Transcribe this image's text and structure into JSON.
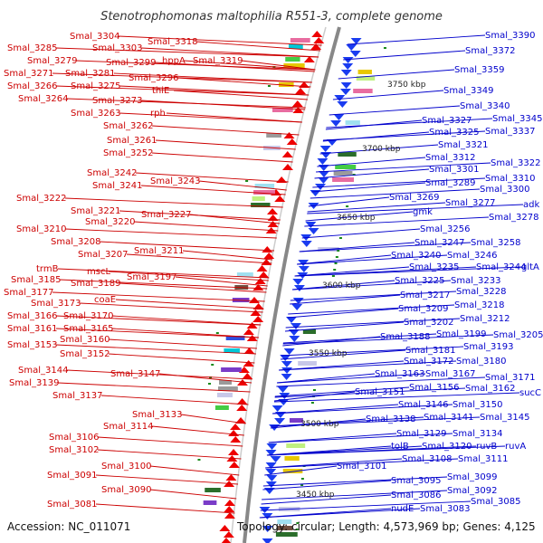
{
  "title": "Stenotrophomonas maltophilia R551-3, complete genome",
  "accession": "Accession: NC_011071",
  "topology": "Topology: circular; Length: 4,573,969 bp; Genes: 4,125",
  "colors": {
    "left": "#cc0000",
    "right": "#0000cc",
    "backbone": "#888888"
  },
  "ticks": [
    "3750 kbp",
    "3700 kbp",
    "3650 kbp",
    "3600 kbp",
    "3550 kbp",
    "3500 kbp",
    "3450 kbp"
  ],
  "left_labels": [
    "Smal_3304",
    "Smal_3318",
    "Smal_3285",
    "Smal_3303",
    "Smal_3279",
    "Smal_3299",
    "hppA",
    "Smal_3319",
    "Smal_3271",
    "Smal_3281",
    "Smal_3296",
    "Smal_3266",
    "Smal_3275",
    "thiE",
    "Smal_3264",
    "Smal_3273",
    "Smal_3263",
    "rph",
    "Smal_3262",
    "Smal_3261",
    "Smal_3252",
    "Smal_3242",
    "Smal_3241",
    "Smal_3243",
    "Smal_3222",
    "Smal_3221",
    "Smal_3227",
    "Smal_3220",
    "Smal_3210",
    "Smal_3208",
    "Smal_3211",
    "Smal_3207",
    "trmB",
    "mscL",
    "Smal_3197",
    "Smal_3185",
    "Smal_3189",
    "Smal_3177",
    "coaE",
    "Smal_3173",
    "Smal_3166",
    "Smal_3170",
    "Smal_3165",
    "Smal_3161",
    "Smal_3160",
    "Smal_3153",
    "Smal_3152",
    "Smal_3144",
    "Smal_3147",
    "Smal_3139",
    "Smal_3137",
    "Smal_3133",
    "Smal_3114",
    "Smal_3106",
    "Smal_3102",
    "Smal_3100",
    "Smal_3091",
    "Smal_3090",
    "Smal_3081"
  ],
  "right_labels": [
    "Smal_3390",
    "Smal_3372",
    "Smal_3359",
    "Smal_3349",
    "Smal_3340",
    "Smal_3345",
    "Smal_3327",
    "Smal_3337",
    "Smal_3325",
    "Smal_3321",
    "Smal_3312",
    "Smal_3322",
    "Smal_3301",
    "Smal_3310",
    "Smal_3289",
    "Smal_3300",
    "Smal_3277",
    "adk",
    "Smal_3269",
    "Smal_3278",
    "gmk",
    "Smal_3256",
    "Smal_3247",
    "Smal_3258",
    "Smal_3240",
    "Smal_3246",
    "Smal_3235",
    "Smal_3244",
    "gltA",
    "Smal_3225",
    "Smal_3233",
    "Smal_3217",
    "Smal_3228",
    "Smal_3209",
    "Smal_3218",
    "Smal_3212",
    "Smal_3202",
    "Smal_3188",
    "Smal_3199",
    "Smal_3205",
    "Smal_3193",
    "Smal_3181",
    "Smal_3172",
    "Smal_3180",
    "Smal_3163",
    "Smal_3167",
    "Smal_3171",
    "Smal_3151",
    "Smal_3156",
    "Smal_3162",
    "sucC",
    "Smal_3146",
    "Smal_3150",
    "Smal_3138",
    "Smal_3141",
    "Smal_3145",
    "Smal_3129",
    "Smal_3134",
    "tolB",
    "Smal_3120",
    "ruvB",
    "ruvA",
    "Smal_3108",
    "Smal_3111",
    "Smal_3101",
    "Smal_3095",
    "Smal_3099",
    "Smal_3092",
    "Smal_3086",
    "Smal_3085",
    "nudE",
    "Smal_3083"
  ]
}
